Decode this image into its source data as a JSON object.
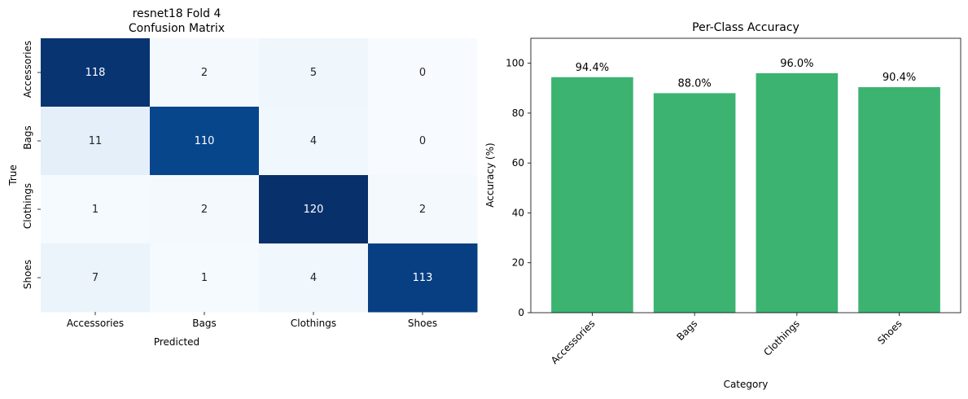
{
  "chart_data": [
    {
      "type": "heatmap",
      "title_line1": "resnet18 Fold 4",
      "title_line2": "Confusion Matrix",
      "xlabel": "Predicted",
      "ylabel": "True",
      "x_categories": [
        "Accessories",
        "Bags",
        "Clothings",
        "Shoes"
      ],
      "y_categories": [
        "Accessories",
        "Bags",
        "Clothings",
        "Shoes"
      ],
      "values": [
        [
          118,
          2,
          5,
          0
        ],
        [
          11,
          110,
          4,
          0
        ],
        [
          1,
          2,
          120,
          2
        ],
        [
          7,
          1,
          4,
          113
        ]
      ],
      "colormap": "Blues",
      "color_range": [
        0,
        120
      ],
      "colorbar": false
    },
    {
      "type": "bar",
      "title": "Per-Class Accuracy",
      "xlabel": "Category",
      "ylabel": "Accuracy (%)",
      "categories": [
        "Accessories",
        "Bags",
        "Clothings",
        "Shoes"
      ],
      "values": [
        94.4,
        88.0,
        96.0,
        90.4
      ],
      "data_labels": [
        "94.4%",
        "88.0%",
        "96.0%",
        "90.4%"
      ],
      "ylim": [
        0,
        110
      ],
      "yticks": [
        0,
        20,
        40,
        60,
        80,
        100
      ],
      "bar_color": "#3cb371",
      "grid": false,
      "xtick_rotation": 45
    }
  ]
}
